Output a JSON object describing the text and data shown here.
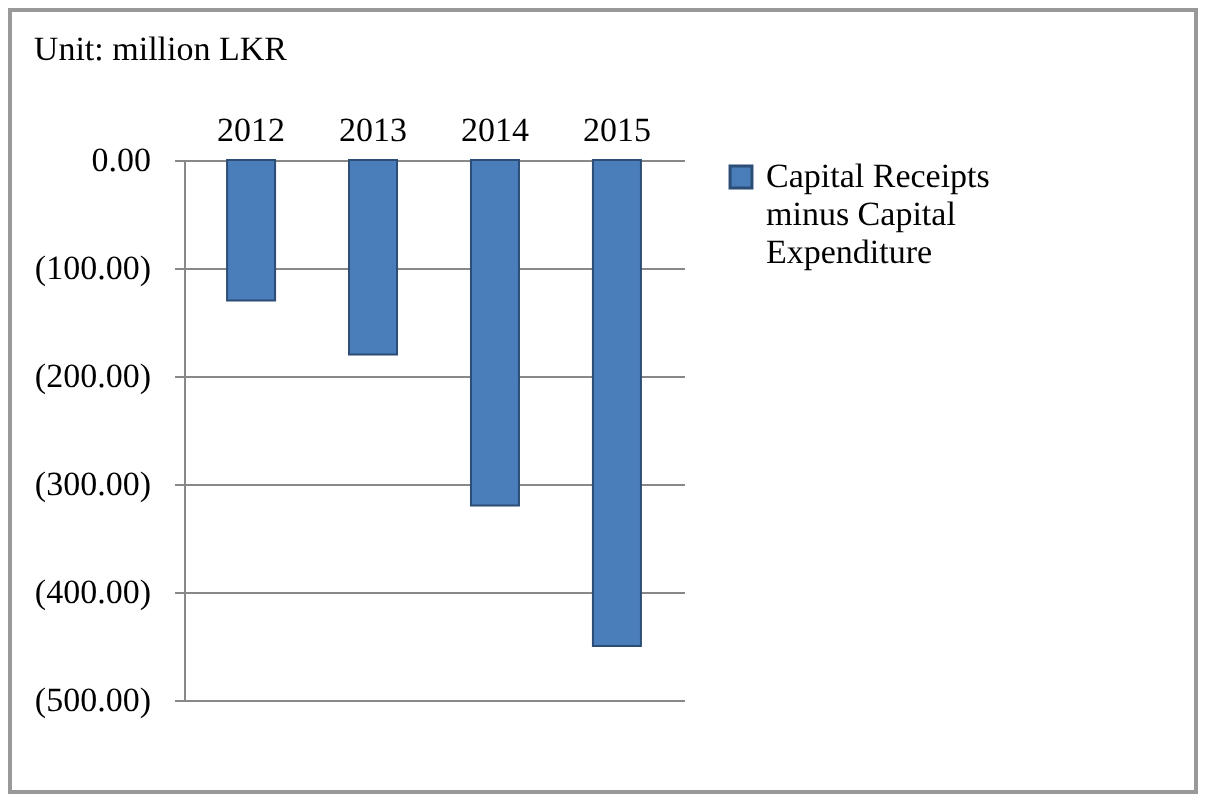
{
  "chart_data": {
    "type": "bar",
    "title": "Unit: million LKR",
    "categories": [
      "2012",
      "2013",
      "2014",
      "2015"
    ],
    "series": [
      {
        "name": "Capital Receipts minus Capital Expenditure",
        "color": "#4a7ebb",
        "values": [
          -130,
          -180,
          -320,
          -450
        ]
      }
    ],
    "ylim": [
      -500,
      0
    ],
    "yticks": [
      {
        "value": 0,
        "label": "0.00"
      },
      {
        "value": -100,
        "label": "(100.00)"
      },
      {
        "value": -200,
        "label": "(200.00)"
      },
      {
        "value": -300,
        "label": "(300.00)"
      },
      {
        "value": -400,
        "label": "(400.00)"
      },
      {
        "value": -500,
        "label": "(500.00)"
      }
    ],
    "grid": "y",
    "legend": "right"
  }
}
